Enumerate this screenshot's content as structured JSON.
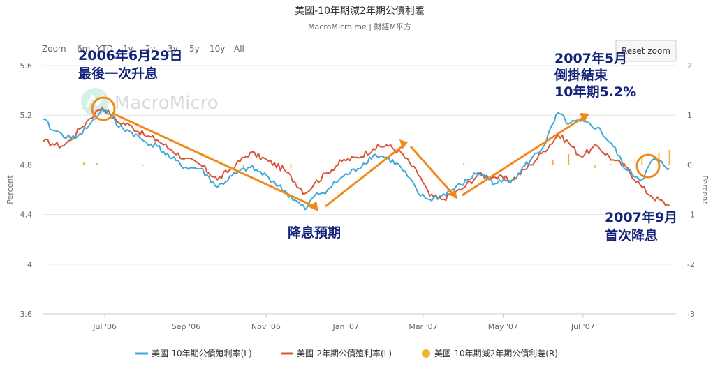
{
  "header": {
    "title": "美國-10年期減2年期公債利差",
    "subtitle": "MacroMicro.me | 財經M平方",
    "watermark": "MacroMicro"
  },
  "zoom": {
    "label": "Zoom",
    "options": [
      "6m",
      "YTD",
      "1y",
      "2y",
      "3y",
      "5y",
      "10y",
      "All"
    ],
    "reset_label": "Reset zoom"
  },
  "colors": {
    "ten_year": "#3fa9d6",
    "two_year": "#d9553a",
    "spread": "#f2b233",
    "annotation_text": "#14237a",
    "arrow": "#f08a1c",
    "grid": "#e6e6e6",
    "axis_text": "#666666"
  },
  "annotations": [
    {
      "id": "last-hike",
      "lines": [
        "2006年6月29日",
        "最後一次升息"
      ]
    },
    {
      "id": "inversion-end",
      "lines": [
        "2007年5月",
        "倒掛結束",
        "10年期5.2%"
      ]
    },
    {
      "id": "cut-expectation",
      "lines": [
        "降息預期"
      ]
    },
    {
      "id": "first-cut",
      "lines": [
        "2007年9月",
        "首次降息"
      ]
    }
  ],
  "chart_data": {
    "type": "line",
    "xlabels": [
      "Jul '06",
      "Sep '06",
      "Nov '06",
      "Jan '07",
      "Mar '07",
      "May '07",
      "Jul '07"
    ],
    "x_range": [
      "2006-05-15",
      "2007-09-10"
    ],
    "y_left": {
      "label": "Percent",
      "min": 3.6,
      "max": 5.6,
      "ticks": [
        "3.6",
        "4",
        "4.4",
        "4.8",
        "5.2",
        "5.6"
      ]
    },
    "y_right": {
      "label": "Percent",
      "min": -3,
      "max": 2,
      "ticks": [
        "-3",
        "-2",
        "-1",
        "0",
        "1",
        "2"
      ]
    },
    "grid": true,
    "legend_position": "bottom",
    "series": [
      {
        "name": "美國-10年期公債殖利率(L)",
        "axis": "left",
        "points": [
          [
            "2006-05-15",
            5.17
          ],
          [
            "2006-05-22",
            5.08
          ],
          [
            "2006-05-29",
            5.05
          ],
          [
            "2006-06-05",
            5.01
          ],
          [
            "2006-06-12",
            5.05
          ],
          [
            "2006-06-19",
            5.12
          ],
          [
            "2006-06-26",
            5.2
          ],
          [
            "2006-06-29",
            5.25
          ],
          [
            "2006-07-05",
            5.21
          ],
          [
            "2006-07-10",
            5.12
          ],
          [
            "2006-07-20",
            5.07
          ],
          [
            "2006-07-31",
            4.99
          ],
          [
            "2006-08-10",
            4.95
          ],
          [
            "2006-08-21",
            4.85
          ],
          [
            "2006-08-31",
            4.78
          ],
          [
            "2006-09-12",
            4.77
          ],
          [
            "2006-09-25",
            4.62
          ],
          [
            "2006-10-09",
            4.73
          ],
          [
            "2006-10-20",
            4.78
          ],
          [
            "2006-11-03",
            4.7
          ],
          [
            "2006-11-15",
            4.59
          ],
          [
            "2006-12-01",
            4.44
          ],
          [
            "2006-12-08",
            4.55
          ],
          [
            "2006-12-18",
            4.6
          ],
          [
            "2006-12-29",
            4.7
          ],
          [
            "2007-01-10",
            4.77
          ],
          [
            "2007-01-22",
            4.88
          ],
          [
            "2007-02-01",
            4.86
          ],
          [
            "2007-02-12",
            4.78
          ],
          [
            "2007-02-27",
            4.55
          ],
          [
            "2007-03-06",
            4.52
          ],
          [
            "2007-03-15",
            4.55
          ],
          [
            "2007-03-30",
            4.64
          ],
          [
            "2007-04-12",
            4.74
          ],
          [
            "2007-04-25",
            4.65
          ],
          [
            "2007-05-08",
            4.68
          ],
          [
            "2007-05-22",
            4.84
          ],
          [
            "2007-06-01",
            4.95
          ],
          [
            "2007-06-12",
            5.22
          ],
          [
            "2007-06-20",
            5.13
          ],
          [
            "2007-06-29",
            5.15
          ],
          [
            "2007-07-12",
            5.1
          ],
          [
            "2007-07-24",
            4.95
          ],
          [
            "2007-08-03",
            4.76
          ],
          [
            "2007-08-15",
            4.68
          ],
          [
            "2007-08-24",
            4.85
          ],
          [
            "2007-09-05",
            4.77
          ]
        ]
      },
      {
        "name": "美國-2年期公債殖利率(L)",
        "axis": "left",
        "points": [
          [
            "2006-05-15",
            4.99
          ],
          [
            "2006-05-22",
            4.97
          ],
          [
            "2006-05-29",
            4.95
          ],
          [
            "2006-06-05",
            5.0
          ],
          [
            "2006-06-12",
            5.09
          ],
          [
            "2006-06-19",
            5.17
          ],
          [
            "2006-06-26",
            5.24
          ],
          [
            "2006-06-29",
            5.26
          ],
          [
            "2006-07-05",
            5.21
          ],
          [
            "2006-07-10",
            5.15
          ],
          [
            "2006-07-20",
            5.12
          ],
          [
            "2006-07-31",
            5.04
          ],
          [
            "2006-08-10",
            5.0
          ],
          [
            "2006-08-21",
            4.92
          ],
          [
            "2006-08-31",
            4.85
          ],
          [
            "2006-09-12",
            4.8
          ],
          [
            "2006-09-25",
            4.68
          ],
          [
            "2006-10-09",
            4.8
          ],
          [
            "2006-10-20",
            4.9
          ],
          [
            "2006-11-03",
            4.83
          ],
          [
            "2006-11-15",
            4.76
          ],
          [
            "2006-12-01",
            4.57
          ],
          [
            "2006-12-08",
            4.65
          ],
          [
            "2006-12-18",
            4.74
          ],
          [
            "2006-12-29",
            4.83
          ],
          [
            "2007-01-10",
            4.86
          ],
          [
            "2007-01-22",
            4.93
          ],
          [
            "2007-02-01",
            4.96
          ],
          [
            "2007-02-12",
            4.9
          ],
          [
            "2007-02-27",
            4.7
          ],
          [
            "2007-03-06",
            4.55
          ],
          [
            "2007-03-15",
            4.52
          ],
          [
            "2007-03-30",
            4.6
          ],
          [
            "2007-04-12",
            4.72
          ],
          [
            "2007-04-25",
            4.7
          ],
          [
            "2007-05-08",
            4.68
          ],
          [
            "2007-05-22",
            4.8
          ],
          [
            "2007-06-01",
            4.91
          ],
          [
            "2007-06-12",
            5.04
          ],
          [
            "2007-06-20",
            4.98
          ],
          [
            "2007-06-29",
            4.87
          ],
          [
            "2007-07-12",
            4.95
          ],
          [
            "2007-07-24",
            4.84
          ],
          [
            "2007-08-03",
            4.78
          ],
          [
            "2007-08-15",
            4.62
          ],
          [
            "2007-08-22",
            4.55
          ],
          [
            "2007-09-05",
            4.47
          ]
        ]
      },
      {
        "name": "美國-10年期減2年期公債利差(R)",
        "axis": "right",
        "type": "bar",
        "points": [
          [
            "2006-06-15",
            0.05
          ],
          [
            "2006-06-25",
            0.03
          ],
          [
            "2006-07-30",
            -0.02
          ],
          [
            "2006-10-15",
            -0.05
          ],
          [
            "2006-11-20",
            -0.06
          ],
          [
            "2007-04-01",
            0.03
          ],
          [
            "2007-05-18",
            0.04
          ],
          [
            "2007-06-08",
            0.1
          ],
          [
            "2007-06-20",
            0.22
          ],
          [
            "2007-07-10",
            -0.06
          ],
          [
            "2007-07-22",
            0.02
          ],
          [
            "2007-08-15",
            0.18
          ],
          [
            "2007-08-28",
            0.25
          ],
          [
            "2007-09-05",
            0.3
          ]
        ]
      }
    ]
  }
}
